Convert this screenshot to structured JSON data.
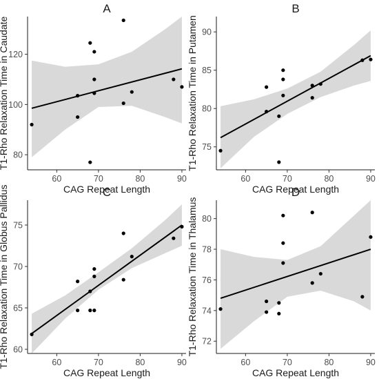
{
  "chart_data": [
    {
      "type": "scatter",
      "title": "A",
      "xlabel": "CAG Repeat Length",
      "ylabel": "T1-Rho Relaxation Time in Caudate",
      "xlim": [
        53,
        91
      ],
      "ylim": [
        74,
        135
      ],
      "xticks": [
        60,
        70,
        80,
        90
      ],
      "yticks": [
        80,
        100,
        120
      ],
      "points": [
        {
          "x": 54,
          "y": 92
        },
        {
          "x": 65,
          "y": 103.5
        },
        {
          "x": 65,
          "y": 95
        },
        {
          "x": 68,
          "y": 124.5
        },
        {
          "x": 68,
          "y": 77
        },
        {
          "x": 69,
          "y": 121
        },
        {
          "x": 69,
          "y": 110
        },
        {
          "x": 69,
          "y": 104.5
        },
        {
          "x": 76,
          "y": 133.5
        },
        {
          "x": 76,
          "y": 100.5
        },
        {
          "x": 78,
          "y": 105
        },
        {
          "x": 88,
          "y": 110
        },
        {
          "x": 90,
          "y": 107
        }
      ],
      "fit": {
        "x": [
          54,
          90
        ],
        "y": [
          98.5,
          114.2
        ]
      },
      "ci": {
        "x": [
          54,
          62,
          70,
          78,
          86,
          90
        ],
        "lower": [
          79,
          90,
          99,
          99.5,
          95,
          92.5
        ],
        "upper": [
          117.5,
          115,
          116,
          121,
          130,
          135
        ]
      }
    },
    {
      "type": "scatter",
      "title": "B",
      "xlabel": "CAG Repeat Length",
      "ylabel": "T1-Rho Relaxation Time in Putamen",
      "xlim": [
        53,
        91
      ],
      "ylim": [
        72,
        92
      ],
      "xticks": [
        60,
        70,
        80,
        90
      ],
      "yticks": [
        75,
        80,
        85,
        90
      ],
      "points": [
        {
          "x": 54,
          "y": 74.5
        },
        {
          "x": 65,
          "y": 82.8
        },
        {
          "x": 65,
          "y": 79.6
        },
        {
          "x": 68,
          "y": 79
        },
        {
          "x": 68,
          "y": 73
        },
        {
          "x": 69,
          "y": 85
        },
        {
          "x": 69,
          "y": 83.8
        },
        {
          "x": 69,
          "y": 81.7
        },
        {
          "x": 76,
          "y": 83
        },
        {
          "x": 76,
          "y": 81.4
        },
        {
          "x": 78,
          "y": 83.2
        },
        {
          "x": 88,
          "y": 86.3
        },
        {
          "x": 90,
          "y": 86.4
        }
      ],
      "fit": {
        "x": [
          54,
          90
        ],
        "y": [
          76.2,
          86.9
        ]
      },
      "ci": {
        "x": [
          54,
          62,
          70,
          78,
          86,
          90
        ],
        "lower": [
          72.2,
          76.3,
          79.3,
          81.5,
          83,
          83.6
        ],
        "upper": [
          80.3,
          81.2,
          82.6,
          84.8,
          88.3,
          90.2
        ]
      }
    },
    {
      "type": "scatter",
      "title": "C",
      "xlabel": "CAG Repeat Length",
      "ylabel": "T1-Rho Relaxation Time in Globus Pallidus",
      "xlim": [
        53,
        91
      ],
      "ylim": [
        59.5,
        78
      ],
      "xticks": [
        60,
        70,
        80,
        90
      ],
      "yticks": [
        60,
        65,
        70,
        75
      ],
      "points": [
        {
          "x": 54,
          "y": 61.8
        },
        {
          "x": 65,
          "y": 68.2
        },
        {
          "x": 65,
          "y": 64.7
        },
        {
          "x": 68,
          "y": 67
        },
        {
          "x": 68,
          "y": 64.7
        },
        {
          "x": 69,
          "y": 69.7
        },
        {
          "x": 69,
          "y": 68.8
        },
        {
          "x": 69,
          "y": 64.7
        },
        {
          "x": 76,
          "y": 74
        },
        {
          "x": 76,
          "y": 68.4
        },
        {
          "x": 78,
          "y": 71.2
        },
        {
          "x": 88,
          "y": 73.4
        },
        {
          "x": 90,
          "y": 74.8
        }
      ],
      "fit": {
        "x": [
          54,
          90
        ],
        "y": [
          61.9,
          75
        ]
      },
      "ci": {
        "x": [
          54,
          62,
          70,
          78,
          86,
          90
        ],
        "lower": [
          59.5,
          63.7,
          67.2,
          69.8,
          71.6,
          72.5
        ],
        "upper": [
          64.3,
          66.5,
          69.3,
          72.2,
          75.6,
          77.5
        ]
      }
    },
    {
      "type": "scatter",
      "title": "D",
      "xlabel": "CAG Repeat Length",
      "ylabel": "T1-Rho Relaxation Time in Thalamus",
      "xlim": [
        53,
        91
      ],
      "ylim": [
        71.2,
        81.2
      ],
      "xticks": [
        60,
        70,
        80,
        90
      ],
      "yticks": [
        72,
        74,
        76,
        78,
        80
      ],
      "points": [
        {
          "x": 54,
          "y": 74.1
        },
        {
          "x": 65,
          "y": 74.6
        },
        {
          "x": 65,
          "y": 73.9
        },
        {
          "x": 68,
          "y": 74.5
        },
        {
          "x": 68,
          "y": 73.8
        },
        {
          "x": 69,
          "y": 80.2
        },
        {
          "x": 69,
          "y": 78.4
        },
        {
          "x": 69,
          "y": 77.1
        },
        {
          "x": 76,
          "y": 80.4
        },
        {
          "x": 76,
          "y": 75.8
        },
        {
          "x": 78,
          "y": 76.4
        },
        {
          "x": 88,
          "y": 74.9
        },
        {
          "x": 90,
          "y": 78.8
        }
      ],
      "fit": {
        "x": [
          54,
          90
        ],
        "y": [
          74.8,
          78
        ]
      },
      "ci": {
        "x": [
          54,
          62,
          70,
          78,
          86,
          90
        ],
        "lower": [
          71.5,
          73.3,
          74.9,
          75.3,
          74.6,
          74
        ],
        "upper": [
          78,
          77.5,
          77.3,
          78.2,
          80.2,
          81.2
        ]
      }
    }
  ]
}
